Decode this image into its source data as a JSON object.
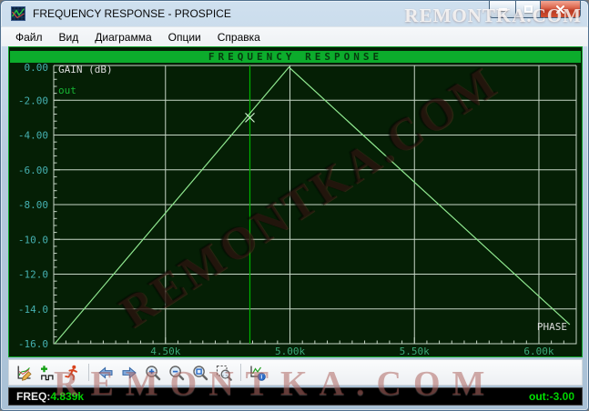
{
  "window": {
    "title": "FREQUENCY RESPONSE - PROSPICE"
  },
  "watermarks": {
    "top": "REMONTKA.COM",
    "diagonal": "REMONTKA.COM",
    "bottom": "REMONTKA.COM"
  },
  "menu": {
    "items": [
      {
        "label": "Файл"
      },
      {
        "label": "Вид"
      },
      {
        "label": "Диаграмма"
      },
      {
        "label": "Опции"
      },
      {
        "label": "Справка"
      }
    ]
  },
  "plot": {
    "header": "FREQUENCY RESPONSE",
    "gain_axis_label": "GAIN (dB)",
    "trace_name": "out",
    "phase_axis_label": "PHASE",
    "colors": {
      "background": "#051F05",
      "header_strip": "#0CAC2C",
      "grid": "#C6D6C6",
      "trace": "#8FE78F",
      "cursor": "#00B400",
      "marker": "#CFF5CF",
      "y_labels": "#45B0B0",
      "x_labels": "#3AA878",
      "text": "#DCDCDC"
    }
  },
  "chart_data": {
    "type": "line",
    "title": "FREQUENCY RESPONSE",
    "xlabel": "Frequency",
    "ylabel": "GAIN (dB)",
    "xlim_khz": [
      4.051,
      6.15
    ],
    "ylim_db": [
      -16,
      0
    ],
    "x_ticks_khz": [
      4.5,
      5.0,
      5.5,
      6.0
    ],
    "x_tick_labels": [
      "4.50k",
      "5.00k",
      "5.50k",
      "6.00k"
    ],
    "y_ticks_db": [
      0,
      -2,
      -4,
      -6,
      -8,
      -10,
      -12,
      -14,
      -16
    ],
    "y_tick_labels": [
      "0.00",
      "-2.00",
      "-4.00",
      "-6.00",
      "-8.00",
      "-10.0",
      "-12.0",
      "-14.0",
      "-16.0"
    ],
    "x_minor_step_khz": 0.05,
    "y_minor_step_db": 0.4,
    "grid": true,
    "legend_position": "top-left",
    "series": [
      {
        "name": "out",
        "color": "#8FE78F",
        "points_khz_db": [
          [
            4.055,
            -16.0
          ],
          [
            4.996,
            -0.1
          ],
          [
            6.124,
            -14.9
          ]
        ]
      }
    ],
    "cursor": {
      "freq_khz": 4.839,
      "gain_db": -3.0
    }
  },
  "toolbar": {
    "icons": [
      "edit-graph",
      "add-trace",
      "simulate",
      "pan-left",
      "pan-right",
      "zoom-in",
      "zoom-out",
      "zoom-full",
      "zoom-area",
      "graph-info"
    ]
  },
  "status": {
    "freq_label": "FREQ:",
    "freq_value": "4.839k",
    "out_label": "out",
    "out_value": ":-3.00"
  }
}
